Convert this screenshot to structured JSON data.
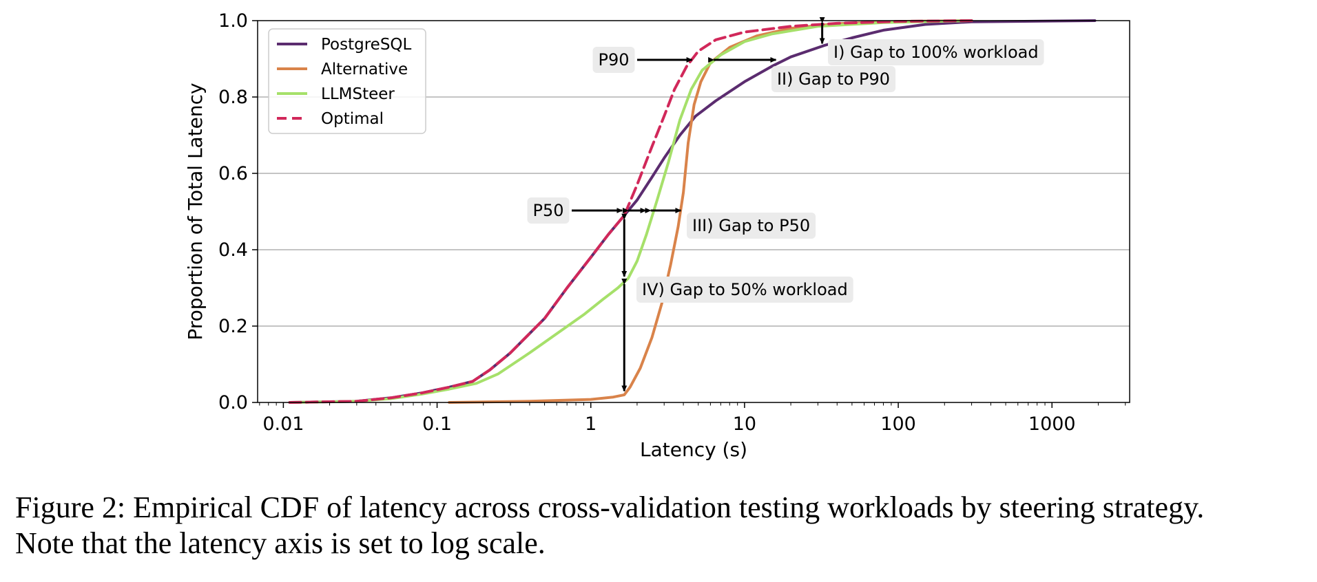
{
  "chart_data": {
    "type": "line",
    "title": "",
    "xlabel": "Latency (s)",
    "ylabel": "Proportion of Total Latency",
    "x_scale": "log",
    "xlim": [
      0.0068,
      3200
    ],
    "ylim": [
      0.0,
      1.0
    ],
    "x_ticks": [
      0.01,
      0.1,
      1,
      10,
      100,
      1000
    ],
    "x_tick_labels": [
      "0.01",
      "0.1",
      "1",
      "10",
      "100",
      "1000"
    ],
    "y_ticks": [
      0.0,
      0.2,
      0.4,
      0.6,
      0.8,
      1.0
    ],
    "y_tick_labels": [
      "0.0",
      "0.2",
      "0.4",
      "0.6",
      "0.8",
      "1.0"
    ],
    "grid": "horizontal",
    "legend_position": "top-left",
    "series": [
      {
        "name": "PostgreSQL",
        "color": "#5b2c6f",
        "dash": "solid",
        "points": [
          [
            0.011,
            0
          ],
          [
            0.03,
            0.003
          ],
          [
            0.05,
            0.012
          ],
          [
            0.08,
            0.025
          ],
          [
            0.12,
            0.04
          ],
          [
            0.17,
            0.055
          ],
          [
            0.22,
            0.085
          ],
          [
            0.3,
            0.13
          ],
          [
            0.5,
            0.22
          ],
          [
            0.7,
            0.3
          ],
          [
            1.0,
            0.38
          ],
          [
            1.3,
            0.44
          ],
          [
            1.65,
            0.49
          ],
          [
            2.0,
            0.53
          ],
          [
            2.5,
            0.59
          ],
          [
            3.0,
            0.64
          ],
          [
            3.8,
            0.7
          ],
          [
            4.8,
            0.75
          ],
          [
            6.5,
            0.79
          ],
          [
            10,
            0.84
          ],
          [
            15,
            0.88
          ],
          [
            20,
            0.905
          ],
          [
            33,
            0.935
          ],
          [
            50,
            0.955
          ],
          [
            80,
            0.975
          ],
          [
            150,
            0.99
          ],
          [
            300,
            0.997
          ],
          [
            1900,
            1.0
          ]
        ]
      },
      {
        "name": "Alternative",
        "color": "#d9834a",
        "dash": "solid",
        "points": [
          [
            0.12,
            0
          ],
          [
            0.4,
            0.003
          ],
          [
            1.0,
            0.008
          ],
          [
            1.4,
            0.014
          ],
          [
            1.65,
            0.02
          ],
          [
            1.8,
            0.04
          ],
          [
            2.1,
            0.09
          ],
          [
            2.5,
            0.17
          ],
          [
            2.9,
            0.26
          ],
          [
            3.3,
            0.36
          ],
          [
            3.7,
            0.46
          ],
          [
            4.0,
            0.55
          ],
          [
            4.3,
            0.68
          ],
          [
            4.7,
            0.78
          ],
          [
            5.2,
            0.84
          ],
          [
            6.0,
            0.89
          ],
          [
            8.0,
            0.93
          ],
          [
            12,
            0.96
          ],
          [
            20,
            0.98
          ],
          [
            40,
            0.992
          ],
          [
            100,
            0.998
          ],
          [
            300,
            1.0
          ]
        ]
      },
      {
        "name": "LLMSteer",
        "color": "#a6e06a",
        "dash": "solid",
        "points": [
          [
            0.011,
            0
          ],
          [
            0.03,
            0.003
          ],
          [
            0.05,
            0.01
          ],
          [
            0.08,
            0.022
          ],
          [
            0.12,
            0.035
          ],
          [
            0.18,
            0.05
          ],
          [
            0.25,
            0.075
          ],
          [
            0.4,
            0.13
          ],
          [
            0.6,
            0.18
          ],
          [
            0.9,
            0.23
          ],
          [
            1.2,
            0.27
          ],
          [
            1.5,
            0.3
          ],
          [
            1.75,
            0.325
          ],
          [
            2.0,
            0.37
          ],
          [
            2.3,
            0.44
          ],
          [
            2.7,
            0.53
          ],
          [
            3.2,
            0.63
          ],
          [
            3.8,
            0.74
          ],
          [
            4.5,
            0.82
          ],
          [
            5.3,
            0.87
          ],
          [
            7,
            0.91
          ],
          [
            10,
            0.945
          ],
          [
            15,
            0.965
          ],
          [
            30,
            0.985
          ],
          [
            80,
            0.995
          ],
          [
            300,
            1.0
          ]
        ]
      },
      {
        "name": "Optimal",
        "color": "#d1285a",
        "dash": "dashed",
        "points": [
          [
            0.011,
            0
          ],
          [
            0.03,
            0.003
          ],
          [
            0.05,
            0.012
          ],
          [
            0.08,
            0.025
          ],
          [
            0.12,
            0.04
          ],
          [
            0.17,
            0.055
          ],
          [
            0.22,
            0.085
          ],
          [
            0.3,
            0.13
          ],
          [
            0.5,
            0.22
          ],
          [
            0.7,
            0.3
          ],
          [
            1.0,
            0.38
          ],
          [
            1.3,
            0.44
          ],
          [
            1.65,
            0.49
          ],
          [
            2.0,
            0.57
          ],
          [
            2.5,
            0.67
          ],
          [
            3.0,
            0.75
          ],
          [
            3.5,
            0.82
          ],
          [
            4.2,
            0.88
          ],
          [
            5.0,
            0.92
          ],
          [
            6.5,
            0.95
          ],
          [
            10,
            0.97
          ],
          [
            20,
            0.985
          ],
          [
            40,
            0.993
          ],
          [
            100,
            0.998
          ],
          [
            300,
            1.0
          ]
        ]
      }
    ],
    "annotations": [
      {
        "id": "p90",
        "text": "P90"
      },
      {
        "id": "gap-100",
        "text": "I) Gap to 100% workload"
      },
      {
        "id": "gap-p90",
        "text": "II) Gap to P90"
      },
      {
        "id": "p50",
        "text": "P50"
      },
      {
        "id": "gap-p50",
        "text": "III) Gap to P50"
      },
      {
        "id": "gap-50",
        "text": "IV) Gap to 50% workload"
      }
    ]
  },
  "caption": {
    "line1": "Figure 2: Empirical CDF of latency across cross-validation testing workloads by steering strategy.",
    "line2": "Note that the latency axis is set to log scale."
  }
}
